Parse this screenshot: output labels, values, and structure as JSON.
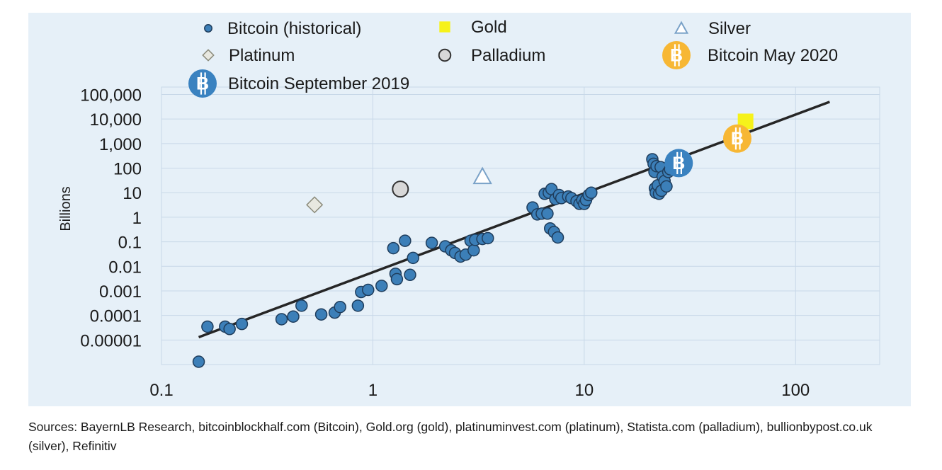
{
  "chart_data": {
    "type": "scatter",
    "title": "",
    "xlabel": "",
    "ylabel": "Billions",
    "x_scale": "log",
    "y_scale": "log",
    "xlim": [
      0.1,
      250
    ],
    "ylim": [
      1e-06,
      200000
    ],
    "x_ticks": [
      {
        "value": 0.1,
        "label": "0.1"
      },
      {
        "value": 1,
        "label": "1"
      },
      {
        "value": 10,
        "label": "10"
      },
      {
        "value": 100,
        "label": "100"
      }
    ],
    "y_ticks": [
      {
        "value": 1e-05,
        "label": "0.00001"
      },
      {
        "value": 0.0001,
        "label": "0.0001"
      },
      {
        "value": 0.001,
        "label": "0.001"
      },
      {
        "value": 0.01,
        "label": "0.01"
      },
      {
        "value": 0.1,
        "label": "0.1"
      },
      {
        "value": 1,
        "label": "1"
      },
      {
        "value": 10,
        "label": "10"
      },
      {
        "value": 100,
        "label": "100"
      },
      {
        "value": 1000,
        "label": "1,000"
      },
      {
        "value": 10000,
        "label": "10,000"
      },
      {
        "value": 100000,
        "label": "100,000"
      }
    ],
    "grid": true,
    "legend_position": "top",
    "colors": {
      "plot_background": "#e6f0f8",
      "grid": "#c8d8e8",
      "bitcoin": "#3c7fb8",
      "bitcoin_edge": "#1f3d5c",
      "gold": "#f6f21a",
      "silver": "#7aa2c8",
      "platinum": "#e8e8e0",
      "palladium": "#d8d8d8",
      "bitcoin_may_2020": "#f7b734",
      "bitcoin_sept_2019": "#3a82c0",
      "trend": "#262626"
    },
    "series": [
      {
        "name": "Bitcoin (historical)",
        "marker": "circle",
        "points": [
          [
            0.15,
            1.3e-06
          ],
          [
            0.165,
            3.5e-05
          ],
          [
            0.2,
            3.5e-05
          ],
          [
            0.21,
            2.8e-05
          ],
          [
            0.24,
            4.5e-05
          ],
          [
            0.37,
            7e-05
          ],
          [
            0.42,
            9e-05
          ],
          [
            0.46,
            0.00025
          ],
          [
            0.57,
            0.00011
          ],
          [
            0.66,
            0.00013
          ],
          [
            0.7,
            0.00022
          ],
          [
            0.85,
            0.00025
          ],
          [
            0.88,
            0.0009
          ],
          [
            0.95,
            0.0011
          ],
          [
            1.1,
            0.0016
          ],
          [
            1.25,
            0.055
          ],
          [
            1.28,
            0.005
          ],
          [
            1.3,
            0.003
          ],
          [
            1.42,
            0.11
          ],
          [
            1.5,
            0.0045
          ],
          [
            1.55,
            0.022
          ],
          [
            1.9,
            0.09
          ],
          [
            2.2,
            0.065
          ],
          [
            2.35,
            0.045
          ],
          [
            2.45,
            0.035
          ],
          [
            2.6,
            0.025
          ],
          [
            2.75,
            0.03
          ],
          [
            2.9,
            0.11
          ],
          [
            3.0,
            0.045
          ],
          [
            3.05,
            0.12
          ],
          [
            3.3,
            0.13
          ],
          [
            3.5,
            0.14
          ],
          [
            5.7,
            2.5
          ],
          [
            6.0,
            1.3
          ],
          [
            6.3,
            1.4
          ],
          [
            6.5,
            9
          ],
          [
            6.7,
            1.4
          ],
          [
            6.8,
            10
          ],
          [
            6.9,
            0.35
          ],
          [
            7.0,
            14
          ],
          [
            7.2,
            0.25
          ],
          [
            7.3,
            5.5
          ],
          [
            7.5,
            0.15
          ],
          [
            7.6,
            8
          ],
          [
            7.8,
            6
          ],
          [
            8.4,
            7
          ],
          [
            8.7,
            6
          ],
          [
            9.2,
            4.5
          ],
          [
            9.5,
            3.5
          ],
          [
            9.8,
            5
          ],
          [
            10.0,
            3.5
          ],
          [
            10.2,
            5
          ],
          [
            10.5,
            8
          ],
          [
            10.8,
            10
          ],
          [
            21.0,
            230
          ],
          [
            21.3,
            150
          ],
          [
            21.5,
            70
          ],
          [
            21.6,
            15
          ],
          [
            21.8,
            10
          ],
          [
            22.0,
            120
          ],
          [
            22.3,
            20
          ],
          [
            22.6,
            9
          ],
          [
            23.0,
            110
          ],
          [
            23.2,
            12
          ],
          [
            23.5,
            45
          ],
          [
            24.0,
            30
          ],
          [
            24.5,
            18
          ],
          [
            25.0,
            70
          ],
          [
            25.5,
            90
          ],
          [
            26.0,
            140
          ]
        ]
      },
      {
        "name": "Gold",
        "marker": "square",
        "points": [
          [
            58,
            8000
          ]
        ]
      },
      {
        "name": "Silver",
        "marker": "triangle-open",
        "points": [
          [
            3.3,
            45
          ]
        ]
      },
      {
        "name": "Platinum",
        "marker": "diamond",
        "points": [
          [
            0.53,
            3.2
          ]
        ]
      },
      {
        "name": "Palladium",
        "marker": "circle-grey",
        "points": [
          [
            1.35,
            14
          ]
        ]
      },
      {
        "name": "Bitcoin May 2020",
        "marker": "bitcoin-badge-orange",
        "points": [
          [
            53,
            1600
          ]
        ]
      },
      {
        "name": "Bitcoin September 2019",
        "marker": "bitcoin-badge-blue",
        "points": [
          [
            28,
            160
          ]
        ]
      }
    ],
    "trendline": {
      "from": [
        0.15,
        1.3e-05
      ],
      "to": [
        145,
        50000
      ]
    }
  },
  "sources_text": "Sources: BayernLB Research, bitcoinblockhalf.com (Bitcoin), Gold.org (gold), platinuminvest.com (platinum), Statista.com (palladium), bullionbypost.co.uk (silver), Refinitiv",
  "badge_glyph": "B"
}
